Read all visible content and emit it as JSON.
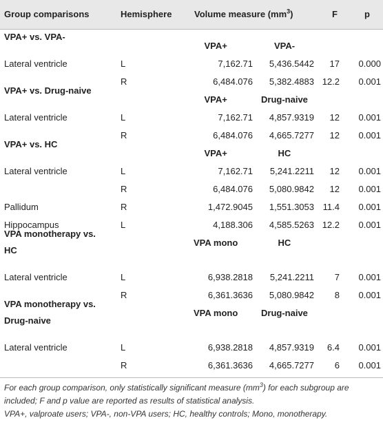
{
  "header": {
    "group": "Group comparisons",
    "hemisphere": "Hemisphere",
    "volume": {
      "text": "Volume measure (mm",
      "sup": "3",
      "close": ")"
    },
    "f": "F",
    "p": "p"
  },
  "sections": [
    {
      "title": [
        "VPA+ vs. VPA-"
      ],
      "col_a": "VPA+",
      "col_b": "VPA-",
      "rows": [
        {
          "region": "Lateral ventricle",
          "hemisphere": "L",
          "a": "7,162.71",
          "b": "5,436.5442",
          "f": "17",
          "p": "0.000"
        },
        {
          "hemisphere": "R",
          "a": "6,484.076",
          "b": "5,382.4883",
          "f": "12.2",
          "p": "0.001"
        }
      ]
    },
    {
      "title": [
        "VPA+ vs. Drug-naive"
      ],
      "col_a": "VPA+",
      "col_b": "Drug-naive",
      "rows": [
        {
          "region": "Lateral ventricle",
          "hemisphere": "L",
          "a": "7,162.71",
          "b": "4,857.9319",
          "f": "12",
          "p": "0.001"
        },
        {
          "hemisphere": "R",
          "a": "6,484.076",
          "b": "4,665.7277",
          "f": "12",
          "p": "0.001"
        }
      ]
    },
    {
      "title": [
        "VPA+ vs. HC"
      ],
      "col_a": "VPA+",
      "col_b": "HC",
      "rows": [
        {
          "region": "Lateral ventricle",
          "hemisphere": "L",
          "a": "7,162.71",
          "b": "5,241.2211",
          "f": "12",
          "p": "0.001"
        },
        {
          "hemisphere": "R",
          "a": "6,484.076",
          "b": "5,080.9842",
          "f": "12",
          "p": "0.001"
        },
        {
          "region": "Pallidum",
          "hemisphere": "R",
          "a": "1,472.9045",
          "b": "1,551.3053",
          "f": "11.4",
          "p": "0.001"
        },
        {
          "region": "Hippocampus",
          "hemisphere": "L",
          "a": "4,188.306",
          "b": "4,585.5263",
          "f": "12.2",
          "p": "0.001"
        }
      ]
    },
    {
      "title": [
        "VPA monotherapy vs.",
        "HC"
      ],
      "col_a": "VPA mono",
      "col_b": "HC",
      "rows": [
        {
          "region": "Lateral ventricle",
          "hemisphere": "L",
          "a": "6,938.2818",
          "b": "5,241.2211",
          "f": "7",
          "p": "0.001"
        },
        {
          "hemisphere": "R",
          "a": "6,361.3636",
          "b": "5,080.9842",
          "f": "8",
          "p": "0.001"
        }
      ]
    },
    {
      "title": [
        "VPA monotherapy vs.",
        "Drug-naive"
      ],
      "col_a": "VPA mono",
      "col_b": "Drug-naive",
      "rows": [
        {
          "region": "Lateral ventricle",
          "hemisphere": "L",
          "a": "6,938.2818",
          "b": "4,857.9319",
          "f": "6.4",
          "p": "0.001"
        },
        {
          "hemisphere": "R",
          "a": "6,361.3636",
          "b": "4,665.7277",
          "f": "6",
          "p": "0.001"
        }
      ]
    }
  ],
  "footnote": {
    "note": {
      "before": "For each group comparison, only statistically significant measure (mm",
      "sup": "3",
      "after": ") for each subgroup are included; F and p value are reported as results of statistical analysis."
    },
    "abbreviations": "VPA+, valproate users; VPA-, non-VPA users; HC, healthy controls; Mono, monotherapy."
  }
}
